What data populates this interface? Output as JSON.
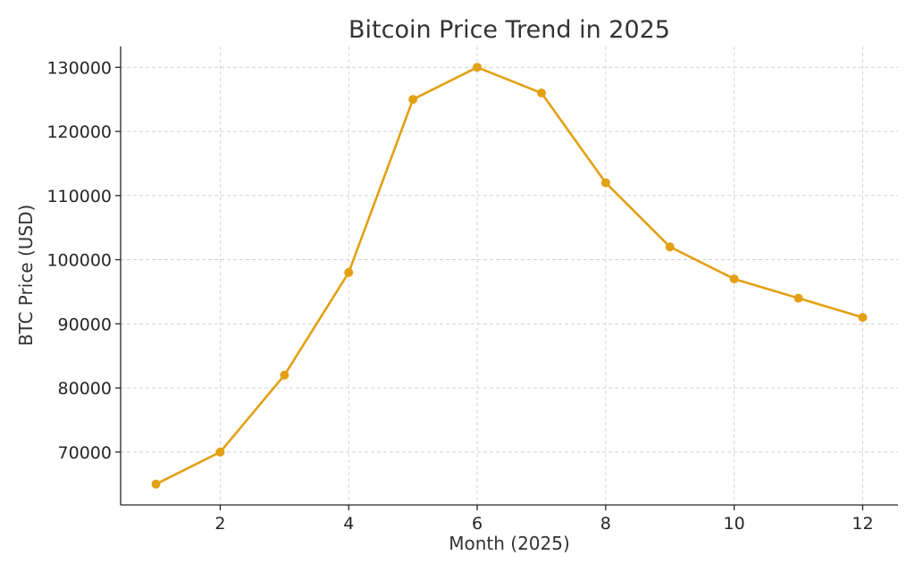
{
  "chart_data": {
    "type": "line",
    "title": "Bitcoin Price Trend in 2025",
    "xlabel": "Month (2025)",
    "ylabel": "BTC Price (USD)",
    "x": [
      1,
      2,
      3,
      4,
      5,
      6,
      7,
      8,
      9,
      10,
      11,
      12
    ],
    "series": [
      {
        "values": [
          65000,
          70000,
          82000,
          98000,
          125000,
          130000,
          126000,
          112000,
          102000,
          97000,
          94000,
          91000
        ],
        "color": "#e3a012"
      }
    ],
    "xlim": [
      0.45,
      12.55
    ],
    "ylim": [
      61750,
      133250
    ],
    "xticks": [
      2,
      4,
      6,
      8,
      10,
      12
    ],
    "yticks": [
      70000,
      80000,
      90000,
      100000,
      110000,
      120000,
      130000
    ],
    "grid": true,
    "legend": "none"
  }
}
